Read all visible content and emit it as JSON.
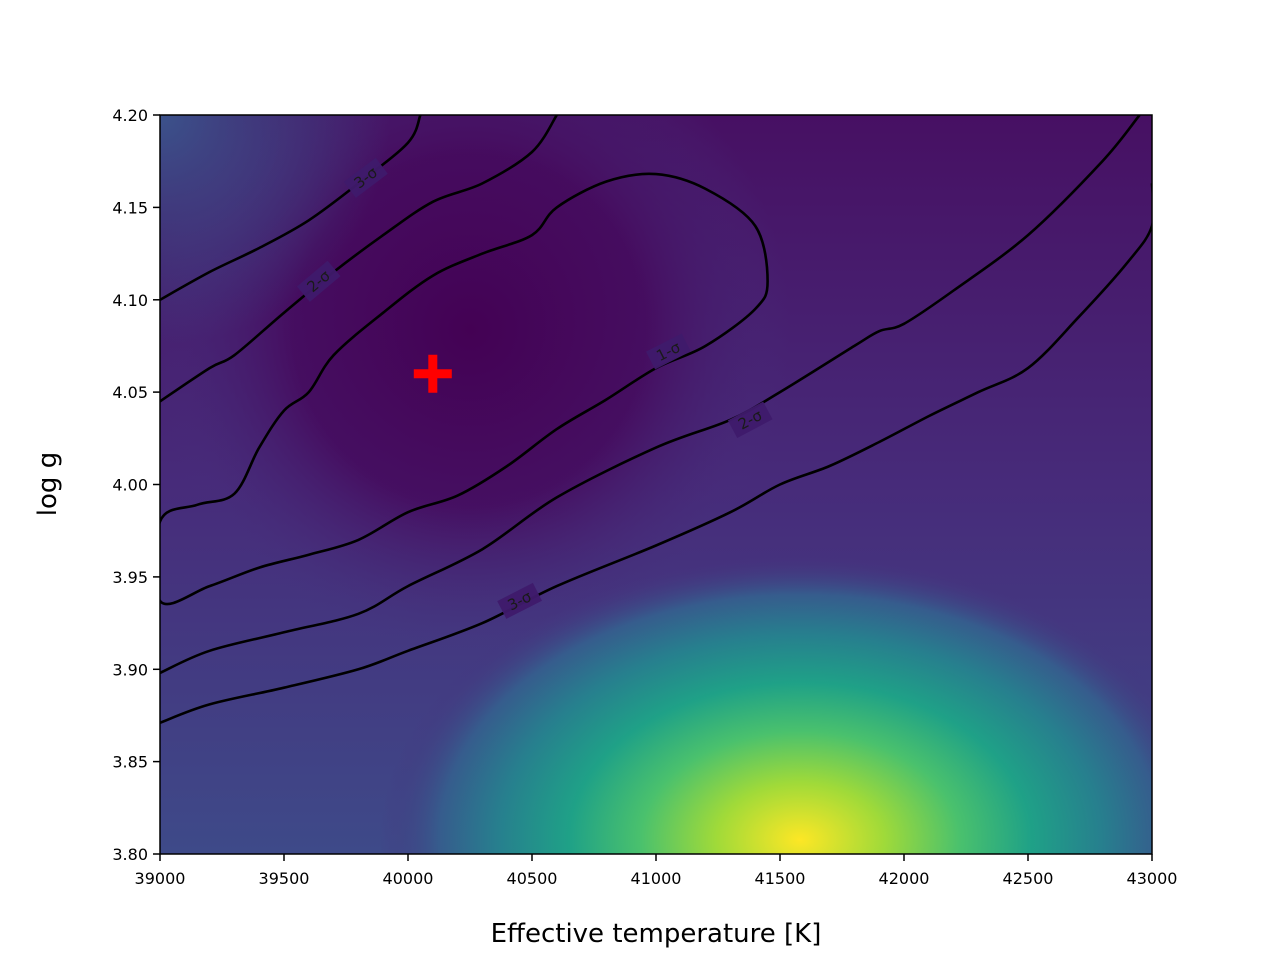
{
  "chart_data": {
    "type": "heatmap",
    "title": "",
    "xlabel": "Effective temperature [K]",
    "ylabel": "log g",
    "xlim": [
      39000,
      43000
    ],
    "ylim": [
      3.8,
      4.2
    ],
    "xticks": [
      {
        "value": 39000,
        "label": "39000"
      },
      {
        "value": 39500,
        "label": "39500"
      },
      {
        "value": 40000,
        "label": "40000"
      },
      {
        "value": 40500,
        "label": "40500"
      },
      {
        "value": 41000,
        "label": "41000"
      },
      {
        "value": 41500,
        "label": "41500"
      },
      {
        "value": 42000,
        "label": "42000"
      },
      {
        "value": 42500,
        "label": "42500"
      },
      {
        "value": 43000,
        "label": "43000"
      }
    ],
    "yticks": [
      {
        "value": 3.8,
        "label": "3.80"
      },
      {
        "value": 3.85,
        "label": "3.85"
      },
      {
        "value": 3.9,
        "label": "3.90"
      },
      {
        "value": 3.95,
        "label": "3.95"
      },
      {
        "value": 4.0,
        "label": "4.00"
      },
      {
        "value": 4.05,
        "label": "4.05"
      },
      {
        "value": 4.1,
        "label": "4.10"
      },
      {
        "value": 4.15,
        "label": "4.15"
      },
      {
        "value": 4.2,
        "label": "4.20"
      }
    ],
    "colormap": "viridis",
    "best_fit": {
      "teff": 40100,
      "logg": 4.06,
      "marker": "plus",
      "color": "#ff0000"
    },
    "contours": [
      {
        "name": "1-sigma",
        "label": "1-σ",
        "closed": true,
        "label_at": {
          "teff": 41050,
          "logg": 4.072,
          "angle": -27
        },
        "points": [
          [
            39000,
            3.98
          ],
          [
            39150,
            3.989
          ],
          [
            39300,
            3.995
          ],
          [
            39400,
            4.02
          ],
          [
            39500,
            4.04
          ],
          [
            39600,
            4.05
          ],
          [
            39700,
            4.07
          ],
          [
            39900,
            4.093
          ],
          [
            40100,
            4.113
          ],
          [
            40300,
            4.125
          ],
          [
            40500,
            4.135
          ],
          [
            40600,
            4.15
          ],
          [
            40800,
            4.164
          ],
          [
            41000,
            4.168
          ],
          [
            41200,
            4.16
          ],
          [
            41400,
            4.14
          ],
          [
            41450,
            4.11
          ],
          [
            41400,
            4.095
          ],
          [
            41200,
            4.075
          ],
          [
            41000,
            4.063
          ],
          [
            40800,
            4.046
          ],
          [
            40600,
            4.03
          ],
          [
            40400,
            4.01
          ],
          [
            40200,
            3.994
          ],
          [
            40000,
            3.985
          ],
          [
            39800,
            3.97
          ],
          [
            39600,
            3.962
          ],
          [
            39400,
            3.955
          ],
          [
            39200,
            3.945
          ],
          [
            39000,
            3.937
          ]
        ]
      },
      {
        "name": "2-sigma",
        "label": "2-σ",
        "closed": false,
        "labels_at": [
          {
            "teff": 39640,
            "logg": 4.11,
            "angle": -40
          },
          {
            "teff": 41380,
            "logg": 4.035,
            "angle": -28
          }
        ],
        "upper": [
          [
            39000,
            4.045
          ],
          [
            39200,
            4.063
          ],
          [
            39300,
            4.07
          ],
          [
            39500,
            4.093
          ],
          [
            39700,
            4.115
          ],
          [
            39900,
            4.135
          ],
          [
            40100,
            4.153
          ],
          [
            40300,
            4.163
          ],
          [
            40500,
            4.18
          ],
          [
            40600,
            4.2
          ]
        ],
        "lower": [
          [
            39000,
            3.898
          ],
          [
            39200,
            3.91
          ],
          [
            39500,
            3.92
          ],
          [
            39800,
            3.93
          ],
          [
            40000,
            3.945
          ],
          [
            40300,
            3.965
          ],
          [
            40600,
            3.993
          ],
          [
            41000,
            4.02
          ],
          [
            41300,
            4.035
          ],
          [
            41500,
            4.05
          ],
          [
            41800,
            4.075
          ],
          [
            41900,
            4.083
          ],
          [
            42000,
            4.087
          ],
          [
            42200,
            4.105
          ],
          [
            42500,
            4.135
          ],
          [
            42800,
            4.175
          ],
          [
            42950,
            4.2
          ]
        ]
      },
      {
        "name": "3-sigma",
        "label": "3-σ",
        "closed": false,
        "labels_at": [
          {
            "teff": 39830,
            "logg": 4.166,
            "angle": -37
          },
          {
            "teff": 40450,
            "logg": 3.937,
            "angle": -27
          }
        ],
        "upper": [
          [
            39000,
            4.1
          ],
          [
            39200,
            4.115
          ],
          [
            39400,
            4.128
          ],
          [
            39600,
            4.143
          ],
          [
            39800,
            4.163
          ],
          [
            40000,
            4.185
          ],
          [
            40050,
            4.2
          ]
        ],
        "lower": [
          [
            39000,
            3.871
          ],
          [
            39200,
            3.881
          ],
          [
            39500,
            3.89
          ],
          [
            39800,
            3.9
          ],
          [
            40000,
            3.91
          ],
          [
            40300,
            3.925
          ],
          [
            40600,
            3.945
          ],
          [
            41000,
            3.967
          ],
          [
            41300,
            3.985
          ],
          [
            41500,
            4.0
          ],
          [
            41700,
            4.01
          ],
          [
            41900,
            4.023
          ],
          [
            42100,
            4.037
          ],
          [
            42300,
            4.05
          ],
          [
            42500,
            4.063
          ],
          [
            42700,
            4.09
          ],
          [
            42900,
            4.12
          ],
          [
            43000,
            4.14
          ],
          [
            43000,
            4.163
          ]
        ]
      }
    ]
  }
}
